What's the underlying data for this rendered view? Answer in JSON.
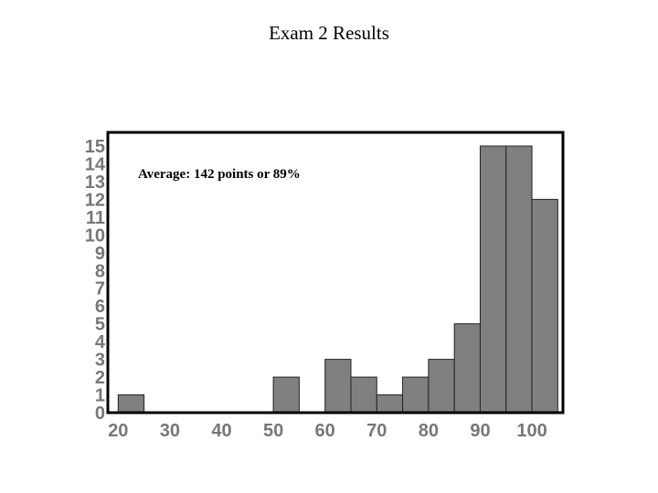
{
  "chart_data": {
    "type": "bar",
    "title": "Exam 2 Results",
    "annotation": "Average: 142 points or 89%",
    "bin_start": 20,
    "bin_width": 5,
    "values": [
      1,
      0,
      0,
      0,
      0,
      0,
      2,
      0,
      3,
      2,
      1,
      2,
      3,
      5,
      15,
      15,
      12
    ],
    "xlim": [
      18,
      106
    ],
    "ylim": [
      0,
      15
    ],
    "xticks": [
      "20",
      "30",
      "40",
      "50",
      "60",
      "70",
      "80",
      "90",
      "100"
    ],
    "yticks": [
      "0",
      "1",
      "2",
      "3",
      "4",
      "5",
      "6",
      "7",
      "8",
      "9",
      "10",
      "11",
      "12",
      "13",
      "14",
      "15"
    ],
    "bar_color": "#808080",
    "grid": false
  }
}
